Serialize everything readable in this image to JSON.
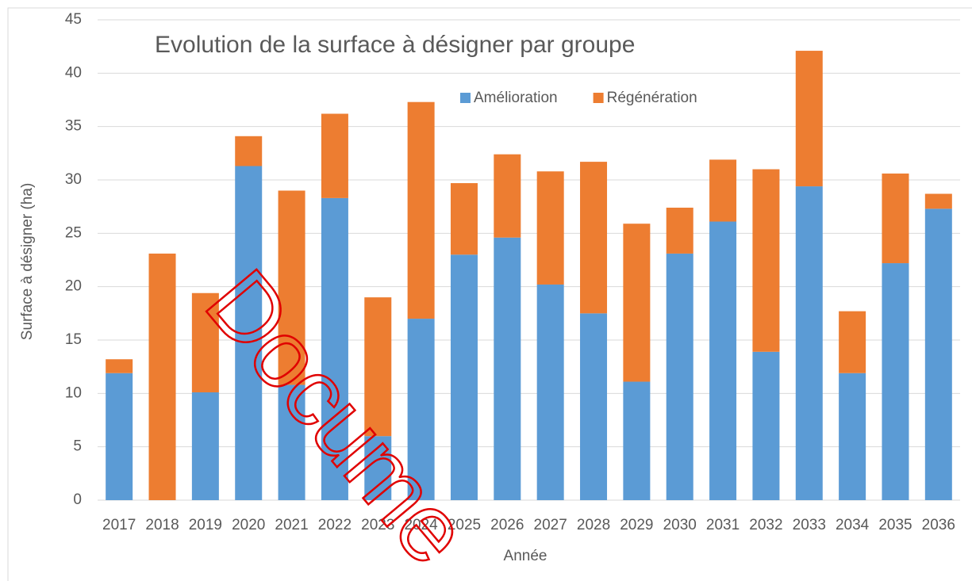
{
  "chart_data": {
    "type": "stacked_bar",
    "title": "Evolution de la surface à désigner par groupe",
    "x_label": "Année",
    "y_label": "Surface à désigner (ha)",
    "watermark": "Docume",
    "categories": [
      "2017",
      "2018",
      "2019",
      "2020",
      "2021",
      "2022",
      "2023",
      "2024",
      "2025",
      "2026",
      "2027",
      "2028",
      "2029",
      "2030",
      "2031",
      "2032",
      "2033",
      "2034",
      "2035",
      "2036"
    ],
    "series": [
      {
        "name": "Amélioration",
        "color": "#5b9bd5",
        "values": [
          11.9,
          0,
          10.1,
          31.3,
          10.8,
          28.3,
          6.0,
          17.0,
          23.0,
          24.6,
          20.2,
          17.5,
          11.1,
          23.1,
          26.1,
          13.9,
          29.4,
          11.9,
          22.2,
          27.3
        ]
      },
      {
        "name": "Régénération",
        "color": "#ed7d31",
        "values": [
          1.3,
          23.1,
          9.3,
          2.8,
          18.2,
          7.9,
          13.0,
          20.3,
          6.7,
          7.8,
          10.6,
          14.2,
          14.8,
          4.3,
          5.8,
          17.1,
          12.7,
          5.8,
          8.4,
          1.4
        ]
      }
    ],
    "ylim": [
      0,
      45
    ],
    "yticks": [
      0,
      5,
      10,
      15,
      20,
      25,
      30,
      35,
      40,
      45
    ],
    "grid": true,
    "legend": "top"
  }
}
